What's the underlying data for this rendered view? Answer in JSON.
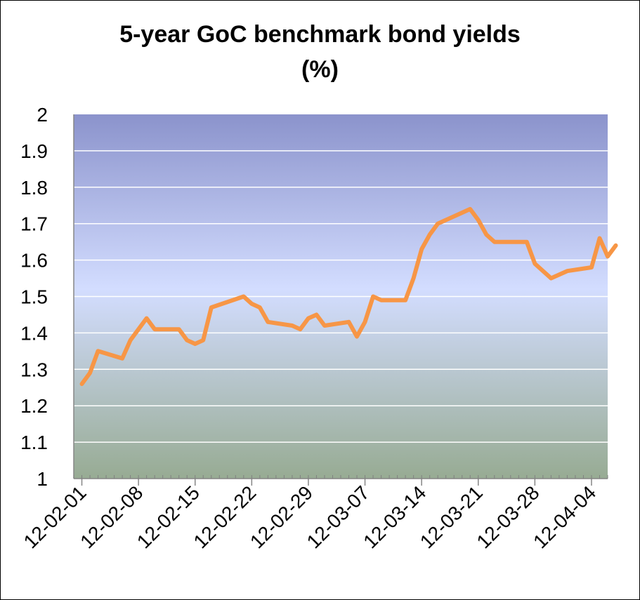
{
  "chart_data": {
    "type": "line",
    "title": "5-year GoC benchmark bond yields",
    "subtitle": "(%)",
    "xlabel": "",
    "ylabel": "",
    "ylim": [
      1,
      2
    ],
    "yticks": [
      "1",
      "1.1",
      "1.2",
      "1.3",
      "1.4",
      "1.5",
      "1.6",
      "1.7",
      "1.8",
      "1.9",
      "2"
    ],
    "xlim": [
      "12-01-31",
      "12-04-06"
    ],
    "xticks": [
      "12-02-01",
      "12-02-08",
      "12-02-15",
      "12-02-22",
      "12-02-29",
      "12-03-07",
      "12-03-14",
      "12-03-21",
      "12-03-28",
      "12-04-04"
    ],
    "grid": true,
    "series": [
      {
        "color": "#f79646",
        "points": [
          [
            "12-02-01",
            1.26
          ],
          [
            "12-02-02",
            1.29
          ],
          [
            "12-02-03",
            1.35
          ],
          [
            "12-02-06",
            1.33
          ],
          [
            "12-02-07",
            1.38
          ],
          [
            "12-02-09",
            1.44
          ],
          [
            "12-02-10",
            1.41
          ],
          [
            "12-02-13",
            1.41
          ],
          [
            "12-02-14",
            1.38
          ],
          [
            "12-02-15",
            1.37
          ],
          [
            "12-02-16",
            1.38
          ],
          [
            "12-02-17",
            1.47
          ],
          [
            "12-02-21",
            1.5
          ],
          [
            "12-02-22",
            1.48
          ],
          [
            "12-02-23",
            1.47
          ],
          [
            "12-02-24",
            1.43
          ],
          [
            "12-02-27",
            1.42
          ],
          [
            "12-02-28",
            1.41
          ],
          [
            "12-02-29",
            1.44
          ],
          [
            "12-03-01",
            1.45
          ],
          [
            "12-03-02",
            1.42
          ],
          [
            "12-03-05",
            1.43
          ],
          [
            "12-03-06",
            1.39
          ],
          [
            "12-03-07",
            1.43
          ],
          [
            "12-03-08",
            1.5
          ],
          [
            "12-03-09",
            1.49
          ],
          [
            "12-03-12",
            1.49
          ],
          [
            "12-03-13",
            1.55
          ],
          [
            "12-03-14",
            1.63
          ],
          [
            "12-03-15",
            1.67
          ],
          [
            "12-03-16",
            1.7
          ],
          [
            "12-03-19",
            1.73
          ],
          [
            "12-03-20",
            1.74
          ],
          [
            "12-03-21",
            1.71
          ],
          [
            "12-03-22",
            1.67
          ],
          [
            "12-03-23",
            1.65
          ],
          [
            "12-03-26",
            1.65
          ],
          [
            "12-03-27",
            1.65
          ],
          [
            "12-03-28",
            1.59
          ],
          [
            "12-03-29",
            1.57
          ],
          [
            "12-03-30",
            1.55
          ],
          [
            "12-04-01",
            1.57
          ],
          [
            "12-04-04",
            1.58
          ],
          [
            "12-04-05",
            1.66
          ],
          [
            "12-04-06",
            1.61
          ],
          [
            "12-04-07",
            1.64
          ]
        ]
      }
    ],
    "colors": {
      "plot_top": "#8b93cc",
      "plot_mid": "#d3ddff",
      "plot_bottom": "#97ab93",
      "grid": "#ffffff",
      "line": "#f79646"
    }
  }
}
